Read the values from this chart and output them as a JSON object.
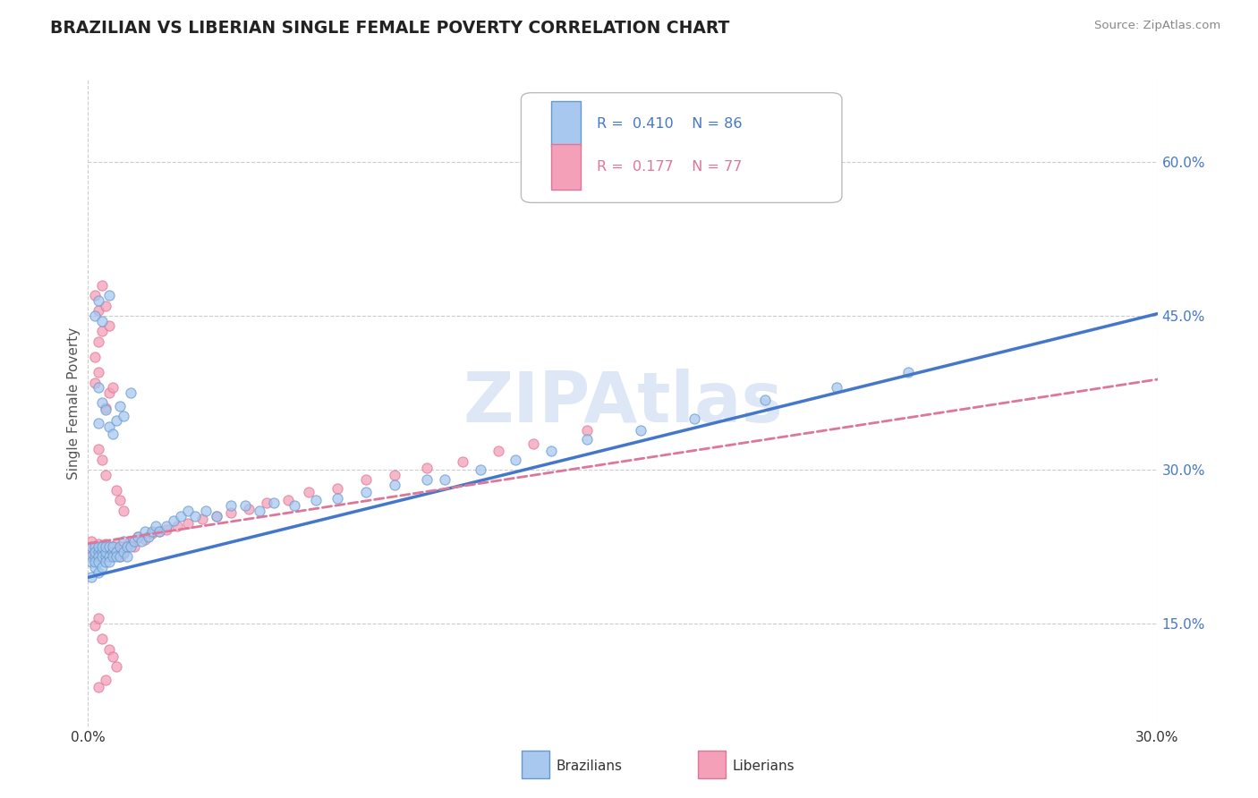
{
  "title": "BRAZILIAN VS LIBERIAN SINGLE FEMALE POVERTY CORRELATION CHART",
  "source_text": "Source: ZipAtlas.com",
  "ylabel": "Single Female Poverty",
  "xlim": [
    0.0,
    0.3
  ],
  "ylim": [
    0.05,
    0.68
  ],
  "x_ticks": [
    0.0,
    0.3
  ],
  "x_tick_labels": [
    "0.0%",
    "30.0%"
  ],
  "y_ticks": [
    0.15,
    0.3,
    0.45,
    0.6
  ],
  "y_tick_labels": [
    "15.0%",
    "30.0%",
    "45.0%",
    "60.0%"
  ],
  "legend_R1": "0.410",
  "legend_N1": "86",
  "legend_R2": "0.177",
  "legend_N2": "77",
  "color_brazilian": "#A8C8F0",
  "color_liberian": "#F4A0B8",
  "color_edge_brazilian": "#6699CC",
  "color_edge_liberian": "#DD7799",
  "color_line_brazilian": "#4477CC",
  "color_line_liberian": "#DD7799",
  "watermark_color": "#C8D8F0",
  "line_braz_x0": 0.0,
  "line_braz_y0": 0.195,
  "line_braz_x1": 0.3,
  "line_braz_y1": 0.452,
  "line_liber_x0": 0.0,
  "line_liber_y0": 0.228,
  "line_liber_x1": 0.3,
  "line_liber_y1": 0.388,
  "braz_x": [
    0.001,
    0.001,
    0.001,
    0.001,
    0.002,
    0.002,
    0.002,
    0.002,
    0.002,
    0.003,
    0.003,
    0.003,
    0.003,
    0.003,
    0.004,
    0.004,
    0.004,
    0.004,
    0.005,
    0.005,
    0.005,
    0.005,
    0.006,
    0.006,
    0.006,
    0.007,
    0.007,
    0.007,
    0.008,
    0.008,
    0.009,
    0.009,
    0.01,
    0.01,
    0.011,
    0.011,
    0.012,
    0.013,
    0.014,
    0.015,
    0.016,
    0.017,
    0.018,
    0.019,
    0.02,
    0.022,
    0.024,
    0.026,
    0.028,
    0.03,
    0.033,
    0.036,
    0.04,
    0.044,
    0.048,
    0.052,
    0.058,
    0.064,
    0.07,
    0.078,
    0.086,
    0.095,
    0.1,
    0.11,
    0.12,
    0.13,
    0.14,
    0.155,
    0.17,
    0.19,
    0.21,
    0.23,
    0.003,
    0.004,
    0.003,
    0.005,
    0.006,
    0.007,
    0.008,
    0.009,
    0.01,
    0.012,
    0.002,
    0.003,
    0.004,
    0.006
  ],
  "braz_y": [
    0.215,
    0.225,
    0.21,
    0.195,
    0.225,
    0.215,
    0.205,
    0.22,
    0.21,
    0.22,
    0.215,
    0.225,
    0.21,
    0.2,
    0.22,
    0.215,
    0.225,
    0.205,
    0.215,
    0.22,
    0.21,
    0.225,
    0.215,
    0.225,
    0.21,
    0.22,
    0.215,
    0.225,
    0.22,
    0.215,
    0.225,
    0.215,
    0.22,
    0.23,
    0.225,
    0.215,
    0.225,
    0.23,
    0.235,
    0.23,
    0.24,
    0.235,
    0.24,
    0.245,
    0.24,
    0.245,
    0.25,
    0.255,
    0.26,
    0.255,
    0.26,
    0.255,
    0.265,
    0.265,
    0.26,
    0.268,
    0.265,
    0.27,
    0.272,
    0.278,
    0.285,
    0.29,
    0.29,
    0.3,
    0.31,
    0.318,
    0.33,
    0.338,
    0.35,
    0.368,
    0.38,
    0.395,
    0.345,
    0.365,
    0.38,
    0.358,
    0.342,
    0.335,
    0.348,
    0.362,
    0.352,
    0.375,
    0.45,
    0.465,
    0.445,
    0.47
  ],
  "liber_x": [
    0.001,
    0.001,
    0.001,
    0.002,
    0.002,
    0.002,
    0.003,
    0.003,
    0.003,
    0.004,
    0.004,
    0.004,
    0.005,
    0.005,
    0.005,
    0.006,
    0.006,
    0.007,
    0.007,
    0.008,
    0.008,
    0.009,
    0.009,
    0.01,
    0.01,
    0.011,
    0.012,
    0.013,
    0.014,
    0.016,
    0.018,
    0.02,
    0.022,
    0.025,
    0.028,
    0.032,
    0.036,
    0.04,
    0.045,
    0.05,
    0.056,
    0.062,
    0.07,
    0.078,
    0.086,
    0.095,
    0.105,
    0.115,
    0.125,
    0.14,
    0.002,
    0.003,
    0.002,
    0.003,
    0.004,
    0.005,
    0.006,
    0.007,
    0.003,
    0.002,
    0.004,
    0.005,
    0.006,
    0.003,
    0.004,
    0.005,
    0.008,
    0.009,
    0.01,
    0.004,
    0.006,
    0.007,
    0.003,
    0.005,
    0.008,
    0.002,
    0.003
  ],
  "liber_y": [
    0.23,
    0.215,
    0.22,
    0.225,
    0.215,
    0.22,
    0.228,
    0.215,
    0.222,
    0.22,
    0.215,
    0.225,
    0.218,
    0.228,
    0.215,
    0.222,
    0.215,
    0.218,
    0.225,
    0.22,
    0.228,
    0.222,
    0.215,
    0.225,
    0.218,
    0.228,
    0.23,
    0.225,
    0.235,
    0.232,
    0.238,
    0.24,
    0.242,
    0.245,
    0.248,
    0.252,
    0.255,
    0.258,
    0.262,
    0.268,
    0.27,
    0.278,
    0.282,
    0.29,
    0.295,
    0.302,
    0.308,
    0.318,
    0.325,
    0.338,
    0.385,
    0.395,
    0.41,
    0.425,
    0.435,
    0.36,
    0.375,
    0.38,
    0.455,
    0.47,
    0.48,
    0.46,
    0.44,
    0.32,
    0.31,
    0.295,
    0.28,
    0.27,
    0.26,
    0.135,
    0.125,
    0.118,
    0.088,
    0.095,
    0.108,
    0.148,
    0.155
  ]
}
